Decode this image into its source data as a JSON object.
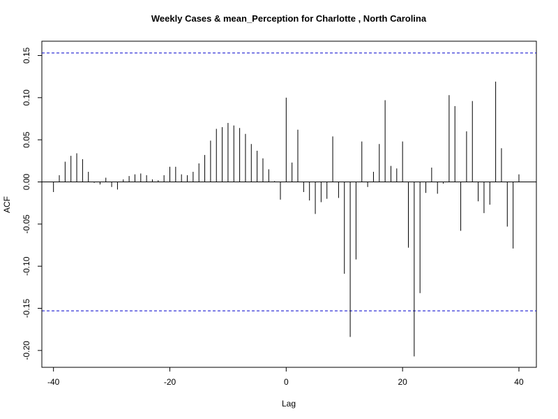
{
  "chart_data": {
    "type": "bar",
    "subtype": "acf-stem",
    "title": "Weekly Cases & mean_Perception for Charlotte , North Carolina",
    "xlabel": "Lag",
    "ylabel": "ACF",
    "xlim": [
      -42,
      43
    ],
    "ylim": [
      -0.22,
      0.167
    ],
    "xticks": [
      -40,
      -20,
      0,
      20,
      40
    ],
    "xtick_labels": [
      "-40",
      "-20",
      "0",
      "20",
      "40"
    ],
    "yticks": [
      -0.2,
      -0.15,
      -0.1,
      -0.05,
      0.0,
      0.05,
      0.1,
      0.15
    ],
    "ytick_labels": [
      "-0.20",
      "-0.15",
      "-0.10",
      "-0.05",
      "0.00",
      "0.05",
      "0.10",
      "0.15"
    ],
    "confidence_bounds": [
      0.153,
      -0.153
    ],
    "bound_color": "#0000cc",
    "line_color": "#000000",
    "grid": false,
    "lags": [
      -40,
      -39,
      -38,
      -37,
      -36,
      -35,
      -34,
      -33,
      -32,
      -31,
      -30,
      -29,
      -28,
      -27,
      -26,
      -25,
      -24,
      -23,
      -22,
      -21,
      -20,
      -19,
      -18,
      -17,
      -16,
      -15,
      -14,
      -13,
      -12,
      -11,
      -10,
      -9,
      -8,
      -7,
      -6,
      -5,
      -4,
      -3,
      -2,
      -1,
      0,
      1,
      2,
      3,
      4,
      5,
      6,
      7,
      8,
      9,
      10,
      11,
      12,
      13,
      14,
      15,
      16,
      17,
      18,
      19,
      20,
      21,
      22,
      23,
      24,
      25,
      26,
      27,
      28,
      29,
      30,
      31,
      32,
      33,
      34,
      35,
      36,
      37,
      38,
      39,
      40
    ],
    "values": [
      -0.012,
      0.008,
      0.024,
      0.031,
      0.034,
      0.027,
      0.012,
      -0.001,
      -0.003,
      0.005,
      -0.006,
      -0.009,
      0.003,
      0.007,
      0.009,
      0.01,
      0.008,
      0.003,
      0.002,
      0.008,
      0.018,
      0.018,
      0.009,
      0.008,
      0.012,
      0.022,
      0.032,
      0.049,
      0.063,
      0.065,
      0.07,
      0.067,
      0.064,
      0.057,
      0.045,
      0.037,
      0.028,
      0.015,
      0.001,
      -0.021,
      0.1,
      0.023,
      0.062,
      -0.012,
      -0.022,
      -0.038,
      -0.024,
      -0.02,
      0.054,
      -0.019,
      -0.109,
      -0.184,
      -0.092,
      0.048,
      -0.006,
      0.012,
      0.045,
      0.097,
      0.019,
      0.016,
      0.048,
      -0.078,
      -0.207,
      -0.132,
      -0.013,
      0.017,
      -0.014,
      -0.002,
      0.103,
      0.09,
      -0.058,
      0.06,
      0.096,
      -0.023,
      -0.037,
      -0.027,
      0.119,
      0.04,
      -0.053,
      -0.079,
      0.009
    ]
  }
}
